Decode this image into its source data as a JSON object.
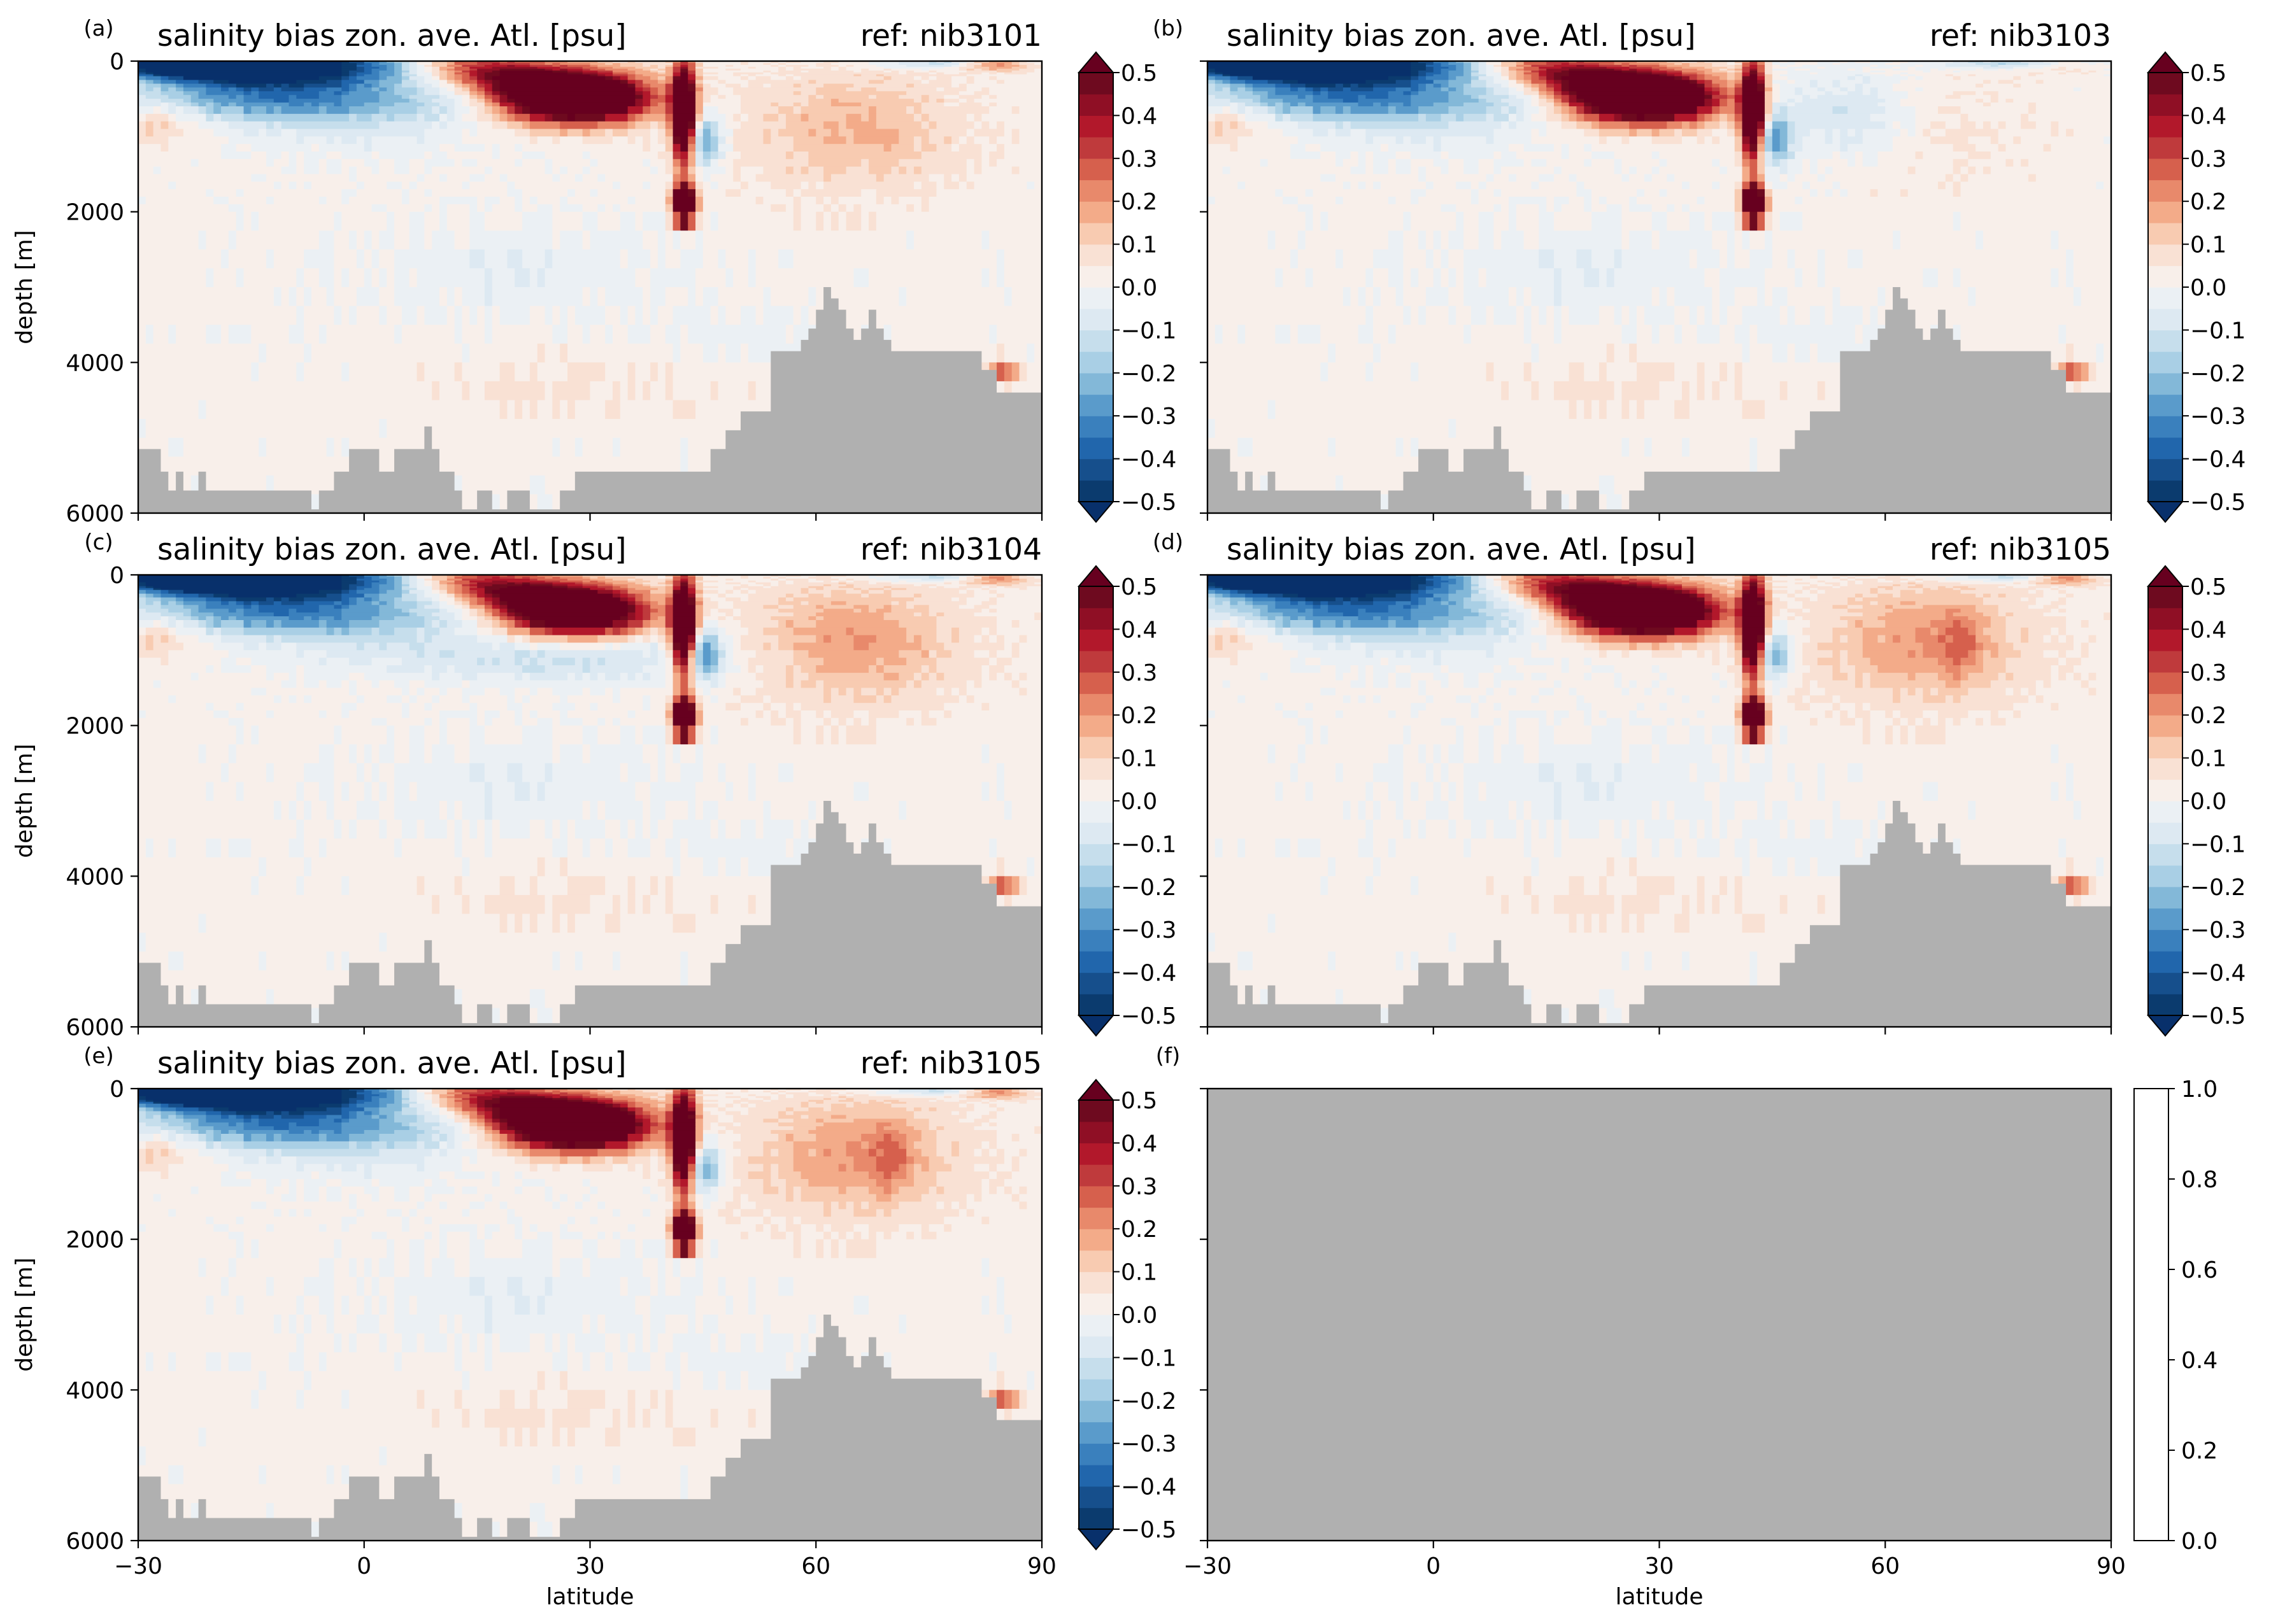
{
  "figure": {
    "bathymetry_color": "#b0b0b0",
    "panel_f_color": "#b0b0b0"
  },
  "colormap": {
    "name": "RdBu_r",
    "levels": [
      -0.5,
      -0.45,
      -0.4,
      -0.35,
      -0.3,
      -0.25,
      -0.2,
      -0.15,
      -0.1,
      -0.05,
      0.0,
      0.05,
      0.1,
      0.15,
      0.2,
      0.25,
      0.3,
      0.35,
      0.4,
      0.45,
      0.5
    ],
    "colors": [
      "#0b3b6e",
      "#164f8c",
      "#2166ac",
      "#3a80bd",
      "#5a9bcb",
      "#83b8d8",
      "#a9cfe5",
      "#c6deec",
      "#dde9f2",
      "#ebf0f4",
      "#f8efea",
      "#f9e1d4",
      "#f8cbb1",
      "#f3ab89",
      "#e8896b",
      "#d6604d",
      "#bf3a3c",
      "#b2182b",
      "#8f0f25",
      "#6e0a1f"
    ],
    "under_color": "#08306b",
    "over_color": "#67001f",
    "tick_labels": [
      "0.5",
      "0.4",
      "0.3",
      "0.2",
      "0.1",
      "0.0",
      "−0.1",
      "−0.2",
      "−0.3",
      "−0.4",
      "−0.5"
    ]
  },
  "empty_colorbar": {
    "tick_labels": [
      "1.0",
      "0.8",
      "0.6",
      "0.4",
      "0.2",
      "0.0"
    ]
  },
  "axes": {
    "x_ticks": [
      "−30",
      "0",
      "30",
      "60",
      "90"
    ],
    "y_ticks": [
      "0",
      "2000",
      "4000",
      "6000"
    ],
    "xlabel": "latitude",
    "ylabel": "depth [m]"
  },
  "chart_data": [
    {
      "type": "heatmap",
      "panel": "(a)",
      "title": "salinity bias zon. ave. Atl. [psu]",
      "ref": "ref: nib3101",
      "x_range": [
        -30,
        90
      ],
      "y_range": [
        6000,
        0
      ],
      "xlabel": "",
      "ylabel": "depth [m]",
      "colorbar_range": [
        -0.5,
        0.5
      ],
      "features": [
        {
          "name": "surface fresh bias",
          "lat": [
            -25,
            10
          ],
          "depth": [
            0,
            600
          ],
          "value": -0.45
        },
        {
          "name": "subtropical salty tongue",
          "lat": [
            10,
            43
          ],
          "depth": [
            100,
            1000
          ],
          "value": 0.45
        },
        {
          "name": "Mediterranean outflow core",
          "lat": [
            41,
            44
          ],
          "depth": [
            1700,
            2100
          ],
          "value": 0.5
        },
        {
          "name": "fresh intermediate patch",
          "lat": [
            44,
            48
          ],
          "depth": [
            600,
            1500
          ],
          "value": -0.2
        },
        {
          "name": "northern salty band",
          "lat": [
            50,
            85
          ],
          "depth": [
            200,
            2000
          ],
          "value": 0.12
        },
        {
          "name": "deep ocean",
          "lat": [
            -30,
            90
          ],
          "depth": [
            2000,
            6000
          ],
          "value": 0.02
        }
      ]
    },
    {
      "type": "heatmap",
      "panel": "(b)",
      "title": "salinity bias zon. ave. Atl. [psu]",
      "ref": "ref: nib3103",
      "x_range": [
        -30,
        90
      ],
      "y_range": [
        6000,
        0
      ],
      "xlabel": "",
      "ylabel": "",
      "colorbar_range": [
        -0.5,
        0.5
      ],
      "features": [
        {
          "name": "surface fresh bias",
          "lat": [
            -25,
            10
          ],
          "depth": [
            0,
            500
          ],
          "value": -0.42
        },
        {
          "name": "subtropical salty tongue",
          "lat": [
            12,
            43
          ],
          "depth": [
            100,
            900
          ],
          "value": 0.42
        },
        {
          "name": "Mediterranean outflow core",
          "lat": [
            41,
            44
          ],
          "depth": [
            1700,
            2100
          ],
          "value": 0.5
        },
        {
          "name": "fresh intermediate patch",
          "lat": [
            44,
            60
          ],
          "depth": [
            300,
            1500
          ],
          "value": -0.12
        },
        {
          "name": "deep ocean",
          "lat": [
            -30,
            90
          ],
          "depth": [
            2000,
            6000
          ],
          "value": 0.02
        }
      ]
    },
    {
      "type": "heatmap",
      "panel": "(c)",
      "title": "salinity bias zon. ave. Atl. [psu]",
      "ref": "ref: nib3104",
      "x_range": [
        -30,
        90
      ],
      "y_range": [
        6000,
        0
      ],
      "xlabel": "",
      "ylabel": "depth [m]",
      "colorbar_range": [
        -0.5,
        0.5
      ],
      "features": [
        {
          "name": "surface fresh bias",
          "lat": [
            -25,
            10
          ],
          "depth": [
            0,
            500
          ],
          "value": -0.45
        },
        {
          "name": "subtropical salty tongue",
          "lat": [
            15,
            43
          ],
          "depth": [
            100,
            900
          ],
          "value": 0.45
        },
        {
          "name": "Mediterranean outflow core",
          "lat": [
            41,
            44
          ],
          "depth": [
            1700,
            2100
          ],
          "value": 0.5
        },
        {
          "name": "fresh intermediate patch",
          "lat": [
            8,
            48
          ],
          "depth": [
            600,
            1500
          ],
          "value": -0.15
        },
        {
          "name": "northern salty band",
          "lat": [
            50,
            85
          ],
          "depth": [
            200,
            2000
          ],
          "value": 0.15
        },
        {
          "name": "deep ocean",
          "lat": [
            -30,
            90
          ],
          "depth": [
            2000,
            6000
          ],
          "value": 0.02
        }
      ]
    },
    {
      "type": "heatmap",
      "panel": "(d)",
      "title": "salinity bias zon. ave. Atl. [psu]",
      "ref": "ref: nib3105",
      "x_range": [
        -30,
        90
      ],
      "y_range": [
        6000,
        0
      ],
      "xlabel": "",
      "ylabel": "",
      "colorbar_range": [
        -0.5,
        0.5
      ],
      "features": [
        {
          "name": "surface fresh bias",
          "lat": [
            -25,
            10
          ],
          "depth": [
            0,
            500
          ],
          "value": -0.45
        },
        {
          "name": "subtropical salty tongue",
          "lat": [
            15,
            43
          ],
          "depth": [
            100,
            900
          ],
          "value": 0.48
        },
        {
          "name": "Mediterranean outflow core",
          "lat": [
            41,
            44
          ],
          "depth": [
            1700,
            2100
          ],
          "value": 0.5
        },
        {
          "name": "fresh intermediate patch",
          "lat": [
            44,
            50
          ],
          "depth": [
            600,
            1600
          ],
          "value": -0.18
        },
        {
          "name": "northern salty band",
          "lat": [
            50,
            85
          ],
          "depth": [
            200,
            1800
          ],
          "value": 0.15
        },
        {
          "name": "deep ocean",
          "lat": [
            -30,
            90
          ],
          "depth": [
            2000,
            6000
          ],
          "value": 0.02
        }
      ]
    },
    {
      "type": "heatmap",
      "panel": "(e)",
      "title": "salinity bias zon. ave. Atl. [psu]",
      "ref": "ref: nib3105",
      "x_range": [
        -30,
        90
      ],
      "y_range": [
        6000,
        0
      ],
      "xlabel": "latitude",
      "ylabel": "depth [m]",
      "colorbar_range": [
        -0.5,
        0.5
      ],
      "features": [
        {
          "name": "surface fresh bias",
          "lat": [
            -25,
            10
          ],
          "depth": [
            0,
            500
          ],
          "value": -0.45
        },
        {
          "name": "subtropical salty tongue",
          "lat": [
            15,
            43
          ],
          "depth": [
            100,
            900
          ],
          "value": 0.48
        },
        {
          "name": "Mediterranean outflow core",
          "lat": [
            41,
            44
          ],
          "depth": [
            1700,
            2100
          ],
          "value": 0.5
        },
        {
          "name": "fresh intermediate patch",
          "lat": [
            44,
            50
          ],
          "depth": [
            600,
            1600
          ],
          "value": -0.18
        },
        {
          "name": "northern salty band",
          "lat": [
            50,
            85
          ],
          "depth": [
            200,
            1800
          ],
          "value": 0.15
        },
        {
          "name": "deep ocean",
          "lat": [
            -30,
            90
          ],
          "depth": [
            2000,
            6000
          ],
          "value": 0.02
        }
      ]
    },
    {
      "type": "heatmap",
      "panel": "(f)",
      "title": "",
      "ref": "",
      "x_range": [
        -30,
        90
      ],
      "y_range": [
        6000,
        0
      ],
      "xlabel": "latitude",
      "ylabel": "",
      "colorbar_range": [
        0.0,
        1.0
      ],
      "empty": true
    }
  ],
  "bathymetry": {
    "lat": [
      -30,
      -28,
      -27,
      -26,
      -25,
      -24,
      -23,
      -22,
      -21,
      -20,
      -18,
      -16,
      -14,
      -12,
      -10,
      -8,
      -7,
      -6,
      -5,
      -4,
      -2,
      0,
      2,
      4,
      6,
      8,
      9,
      10,
      12,
      13,
      14,
      15,
      16,
      17,
      18,
      19,
      20,
      22,
      24,
      26,
      28,
      30,
      32,
      34,
      36,
      38,
      40,
      42,
      44,
      46,
      48,
      50,
      52,
      54,
      56,
      58,
      59,
      60,
      61,
      62,
      63,
      64,
      65,
      66,
      67,
      68,
      69,
      70,
      71,
      72,
      73,
      74,
      75,
      76,
      77,
      78,
      80,
      82,
      84,
      85,
      86,
      87,
      88,
      90
    ],
    "depth": [
      5150,
      5150,
      5450,
      5700,
      5450,
      5700,
      5700,
      5450,
      5700,
      5700,
      5700,
      5700,
      5700,
      5700,
      5700,
      5700,
      5950,
      5700,
      5700,
      5450,
      5150,
      5150,
      5450,
      5150,
      5150,
      4850,
      5150,
      5450,
      5700,
      5950,
      5950,
      5700,
      5700,
      5950,
      5950,
      5700,
      5700,
      5950,
      5950,
      5700,
      5450,
      5450,
      5450,
      5450,
      5450,
      5450,
      5450,
      5450,
      5450,
      5150,
      4900,
      4650,
      4650,
      3850,
      3850,
      3700,
      3550,
      3300,
      3000,
      3150,
      3300,
      3550,
      3700,
      3550,
      3300,
      3550,
      3700,
      3850,
      3850,
      3850,
      3850,
      3850,
      3850,
      3850,
      3850,
      3850,
      3850,
      4100,
      4400,
      4400,
      4400,
      4400,
      4400,
      4400
    ]
  }
}
